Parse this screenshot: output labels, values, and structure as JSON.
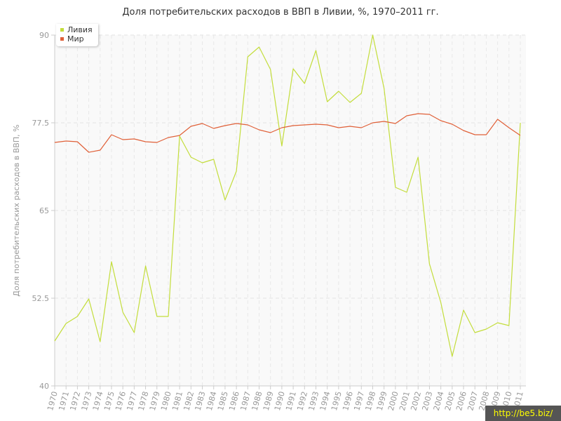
{
  "chart_data": {
    "type": "line",
    "title": "Доля потребительских расходов в ВВП в Ливии, %, 1970–2011 гг.",
    "xlabel": "",
    "ylabel": "Доля потребительских расходов в ВВП, %",
    "ylim": [
      40,
      90
    ],
    "yticks": [
      "40",
      "52.5",
      "65",
      "77.5",
      "90"
    ],
    "grid": true,
    "legend_position": "top-left",
    "categories": [
      "1970",
      "1971",
      "1972",
      "1973",
      "1974",
      "1975",
      "1976",
      "1977",
      "1978",
      "1979",
      "1980",
      "1981",
      "1982",
      "1983",
      "1984",
      "1985",
      "1986",
      "1987",
      "1988",
      "1989",
      "1990",
      "1991",
      "1992",
      "1993",
      "1994",
      "1995",
      "1996",
      "1997",
      "1998",
      "1999",
      "2000",
      "2001",
      "2002",
      "2003",
      "2004",
      "2005",
      "2006",
      "2007",
      "2008",
      "2009",
      "2010",
      "2011"
    ],
    "series": [
      {
        "name": "Ливия",
        "color": "#c3dd3b",
        "values": [
          46.4,
          48.9,
          49.9,
          52.4,
          46.3,
          57.7,
          50.5,
          47.6,
          57.1,
          49.9,
          49.9,
          75.6,
          72.6,
          71.8,
          72.3,
          66.5,
          70.6,
          86.9,
          88.3,
          85.1,
          74.2,
          85.2,
          83.1,
          87.8,
          80.5,
          82.0,
          80.4,
          81.7,
          90.0,
          82.4,
          68.3,
          67.6,
          72.6,
          57.4,
          51.9,
          44.2,
          50.8,
          47.6,
          48.1,
          49.0,
          48.6,
          77.5
        ]
      },
      {
        "name": "Мир",
        "color": "#e06038",
        "values": [
          74.7,
          74.9,
          74.8,
          73.3,
          73.6,
          75.8,
          75.1,
          75.2,
          74.8,
          74.7,
          75.4,
          75.7,
          77.0,
          77.4,
          76.7,
          77.1,
          77.4,
          77.2,
          76.5,
          76.1,
          76.8,
          77.1,
          77.2,
          77.3,
          77.2,
          76.8,
          77.0,
          76.8,
          77.5,
          77.7,
          77.4,
          78.5,
          78.8,
          78.7,
          77.8,
          77.3,
          76.4,
          75.8,
          75.8,
          78.0,
          76.8,
          75.7
        ]
      }
    ]
  },
  "watermark": "http://be5.biz/"
}
